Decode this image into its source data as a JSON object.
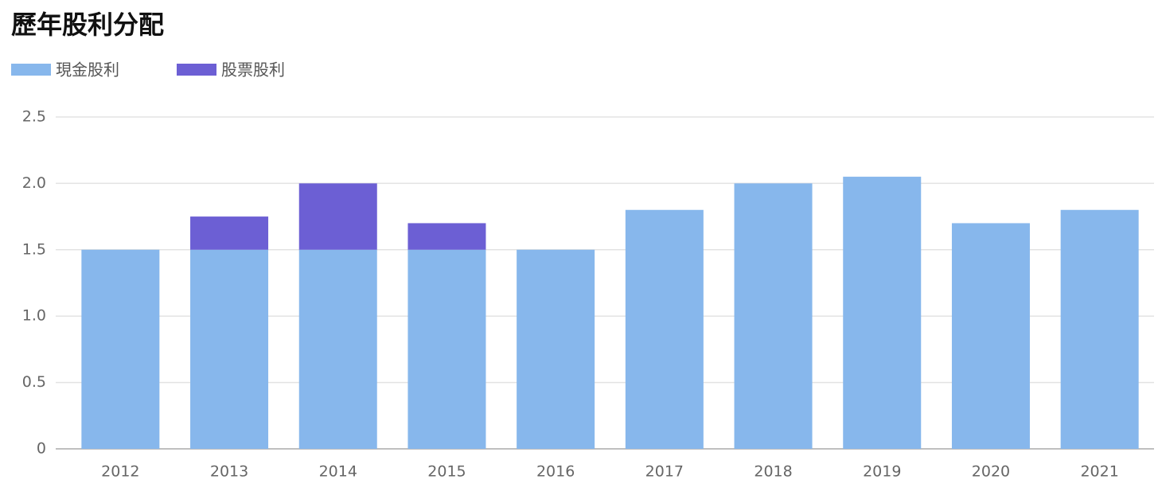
{
  "chart_data": {
    "type": "stacked_bar",
    "title": "歷年股利分配",
    "categories": [
      "2012",
      "2013",
      "2014",
      "2015",
      "2016",
      "2017",
      "2018",
      "2019",
      "2020",
      "2021"
    ],
    "series": [
      {
        "name": "現金股利",
        "color": "#87b7ec",
        "values": [
          1.5,
          1.5,
          1.5,
          1.5,
          1.5,
          1.8,
          2.0,
          2.05,
          1.7,
          1.8
        ]
      },
      {
        "name": "股票股利",
        "color": "#6c5fd4",
        "values": [
          0,
          0.25,
          0.5,
          0.2,
          0,
          0,
          0,
          0,
          0,
          0
        ]
      }
    ],
    "ylim": [
      0,
      2.5
    ],
    "yticks": [
      0,
      0.5,
      {
        "value": 1,
        "label": "1.0"
      },
      1.5,
      {
        "value": 2,
        "label": "2.0"
      },
      2.5
    ],
    "grid": true,
    "legend": "top-left"
  }
}
